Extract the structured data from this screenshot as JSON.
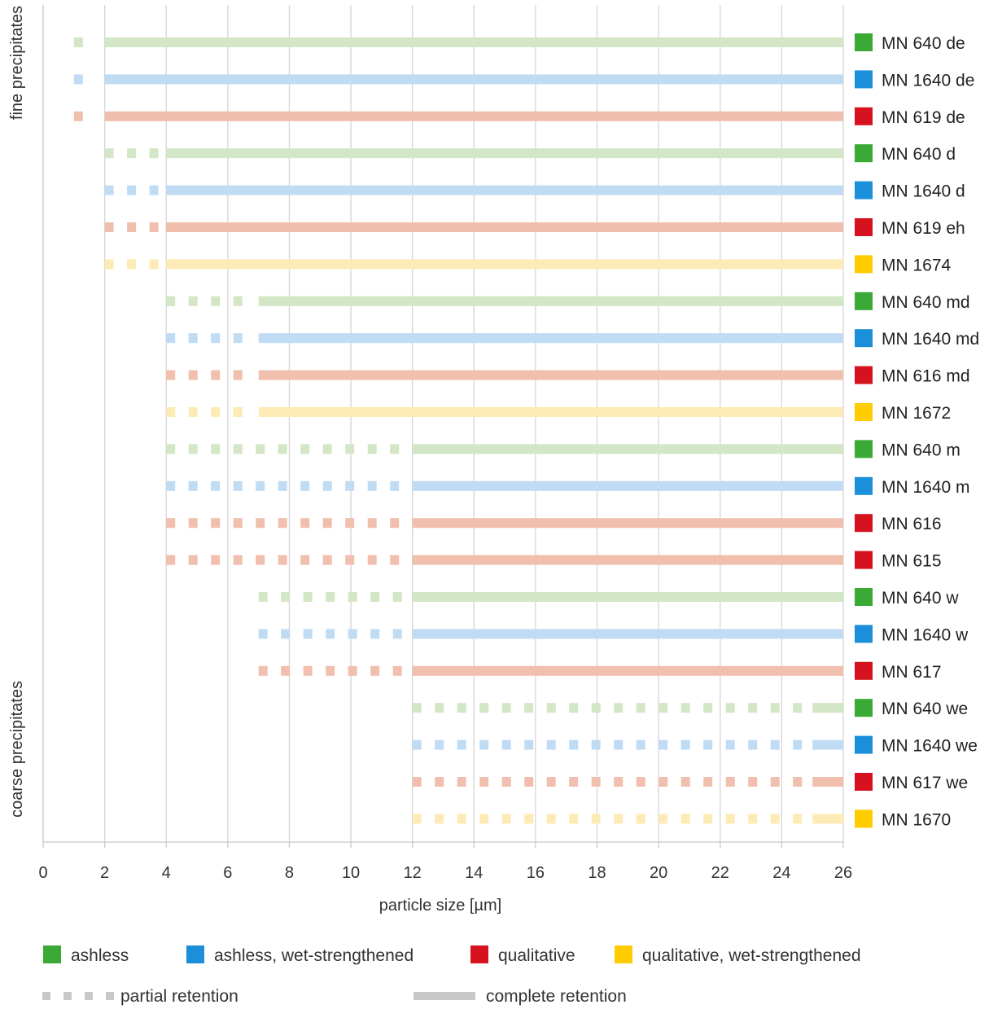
{
  "chart_data": {
    "type": "bar",
    "orientation": "horizontal range",
    "xlabel": "particle size [µm]",
    "xlim": [
      0,
      26
    ],
    "xticks": [
      0,
      2,
      4,
      6,
      8,
      10,
      12,
      14,
      16,
      18,
      20,
      22,
      24,
      26
    ],
    "grid": "vertical",
    "side_labels": {
      "top": "fine precipitates",
      "bottom": "coarse precipitates"
    },
    "categories_legend": [
      {
        "key": "ashless",
        "label": "ashless",
        "color": "#3aaa35",
        "light_color": "#d3e6c5"
      },
      {
        "key": "ashless_wet",
        "label": "ashless, wet-strengthened",
        "color": "#1b8fd9",
        "light_color": "#c0dcf4"
      },
      {
        "key": "qualitative",
        "label": "qualitative",
        "color": "#d7121f",
        "light_color": "#f1bfad"
      },
      {
        "key": "qualitative_wet",
        "label": "qualitative, wet-strengthened",
        "color": "#ffcc00",
        "light_color": "#fdebb5"
      }
    ],
    "retention_legend": {
      "partial": "partial retention",
      "complete": "complete retention",
      "color": "#c8c8c8"
    },
    "rows": [
      {
        "label": "MN 640 de",
        "category": "ashless",
        "partial_from": 1,
        "complete_from": 2,
        "to": 26
      },
      {
        "label": "MN 1640 de",
        "category": "ashless_wet",
        "partial_from": 1,
        "complete_from": 2,
        "to": 26
      },
      {
        "label": "MN 619 de",
        "category": "qualitative",
        "partial_from": 1,
        "complete_from": 2,
        "to": 26
      },
      {
        "label": "MN 640 d",
        "category": "ashless",
        "partial_from": 2,
        "complete_from": 4,
        "to": 26
      },
      {
        "label": "MN 1640 d",
        "category": "ashless_wet",
        "partial_from": 2,
        "complete_from": 4,
        "to": 26
      },
      {
        "label": "MN 619 eh",
        "category": "qualitative",
        "partial_from": 2,
        "complete_from": 4,
        "to": 26
      },
      {
        "label": "MN 1674",
        "category": "qualitative_wet",
        "partial_from": 2,
        "complete_from": 4,
        "to": 26
      },
      {
        "label": "MN 640 md",
        "category": "ashless",
        "partial_from": 4,
        "complete_from": 7,
        "to": 26
      },
      {
        "label": "MN 1640 md",
        "category": "ashless_wet",
        "partial_from": 4,
        "complete_from": 7,
        "to": 26
      },
      {
        "label": "MN 616 md",
        "category": "qualitative",
        "partial_from": 4,
        "complete_from": 7,
        "to": 26
      },
      {
        "label": "MN 1672",
        "category": "qualitative_wet",
        "partial_from": 4,
        "complete_from": 7,
        "to": 26
      },
      {
        "label": "MN 640 m",
        "category": "ashless",
        "partial_from": 4,
        "complete_from": 12,
        "to": 26
      },
      {
        "label": "MN 1640 m",
        "category": "ashless_wet",
        "partial_from": 4,
        "complete_from": 12,
        "to": 26
      },
      {
        "label": "MN 616",
        "category": "qualitative",
        "partial_from": 4,
        "complete_from": 12,
        "to": 26
      },
      {
        "label": "MN 615",
        "category": "qualitative",
        "partial_from": 4,
        "complete_from": 12,
        "to": 26
      },
      {
        "label": "MN 640 w",
        "category": "ashless",
        "partial_from": 7,
        "complete_from": 12,
        "to": 26
      },
      {
        "label": "MN 1640 w",
        "category": "ashless_wet",
        "partial_from": 7,
        "complete_from": 12,
        "to": 26
      },
      {
        "label": "MN 617",
        "category": "qualitative",
        "partial_from": 7,
        "complete_from": 12,
        "to": 26
      },
      {
        "label": "MN 640 we",
        "category": "ashless",
        "partial_from": 12,
        "complete_from": 25,
        "to": 26
      },
      {
        "label": "MN 1640 we",
        "category": "ashless_wet",
        "partial_from": 12,
        "complete_from": 25,
        "to": 26
      },
      {
        "label": "MN 617 we",
        "category": "qualitative",
        "partial_from": 12,
        "complete_from": 25,
        "to": 26
      },
      {
        "label": "MN 1670",
        "category": "qualitative_wet",
        "partial_from": 12,
        "complete_from": 25,
        "to": 26
      }
    ]
  }
}
